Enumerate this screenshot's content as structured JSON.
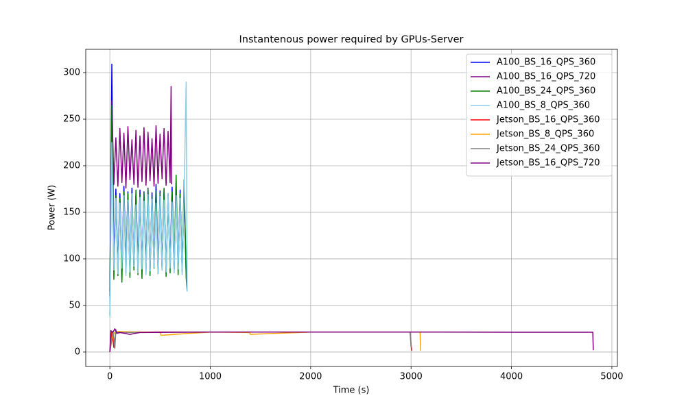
{
  "chart_data": {
    "type": "line",
    "title": "Instantenous power required by GPUs-Server",
    "xlabel": "Time (s)",
    "ylabel": "Power (W)",
    "xlim": [
      -240,
      5055
    ],
    "ylim": [
      -15.5,
      325
    ],
    "xticks": [
      0,
      1000,
      2000,
      3000,
      4000,
      5000
    ],
    "yticks": [
      0,
      50,
      100,
      150,
      200,
      250,
      300
    ],
    "grid": true,
    "legend": "upper right",
    "series": [
      {
        "name": "A100_BS_16_QPS_360",
        "color": "#0000ff",
        "x": [
          0,
          20,
          40,
          60,
          80,
          100,
          120,
          140,
          160,
          180,
          200,
          220,
          240,
          260,
          280,
          300,
          320,
          340,
          360,
          380,
          400,
          420,
          440,
          460,
          480,
          500,
          520,
          540,
          560,
          580,
          600,
          620,
          640,
          660,
          680,
          700,
          720,
          740,
          760,
          770
        ],
        "values": [
          65,
          309,
          95,
          175,
          90,
          170,
          88,
          178,
          92,
          172,
          86,
          176,
          90,
          170,
          95,
          174,
          88,
          172,
          92,
          176,
          87,
          171,
          94,
          180,
          89,
          173,
          91,
          175,
          86,
          170,
          93,
          177,
          88,
          172,
          90,
          174,
          87,
          171,
          85,
          70
        ]
      },
      {
        "name": "A100_BS_16_QPS_720",
        "color": "#800080",
        "x": [
          0,
          20,
          40,
          60,
          80,
          100,
          120,
          140,
          160,
          180,
          200,
          220,
          240,
          260,
          280,
          300,
          320,
          340,
          360,
          380,
          400,
          420,
          440,
          460,
          480,
          500,
          520,
          540,
          560,
          580,
          600,
          610,
          615
        ],
        "values": [
          60,
          270,
          180,
          230,
          178,
          240,
          182,
          235,
          176,
          242,
          185,
          228,
          180,
          238,
          177,
          232,
          183,
          241,
          179,
          236,
          184,
          229,
          178,
          243,
          181,
          234,
          186,
          240,
          179,
          237,
          182,
          285,
          180
        ]
      },
      {
        "name": "A100_BS_24_QPS_360",
        "color": "#008000",
        "x": [
          0,
          20,
          40,
          60,
          80,
          100,
          120,
          140,
          160,
          180,
          200,
          220,
          240,
          260,
          280,
          300,
          320,
          340,
          360,
          380,
          400,
          420,
          440,
          460,
          480,
          500,
          520,
          540,
          560,
          580,
          600,
          620,
          640,
          660,
          680,
          700,
          720,
          740,
          760,
          770
        ],
        "values": [
          40,
          265,
          78,
          168,
          82,
          165,
          75,
          172,
          85,
          170,
          80,
          166,
          88,
          174,
          83,
          169,
          79,
          171,
          86,
          175,
          82,
          167,
          90,
          173,
          84,
          170,
          88,
          176,
          81,
          168,
          85,
          172,
          89,
          190,
          83,
          170,
          86,
          185,
          80,
          65
        ]
      },
      {
        "name": "A100_BS_8_QPS_360",
        "color": "#87ceeb",
        "x": [
          0,
          20,
          40,
          60,
          80,
          100,
          120,
          140,
          160,
          180,
          200,
          220,
          240,
          260,
          280,
          300,
          320,
          340,
          360,
          380,
          400,
          420,
          440,
          460,
          480,
          500,
          520,
          540,
          560,
          580,
          600,
          620,
          640,
          660,
          680,
          700,
          720,
          740,
          760,
          770
        ],
        "values": [
          38,
          225,
          88,
          165,
          84,
          160,
          90,
          168,
          82,
          163,
          86,
          170,
          92,
          158,
          85,
          166,
          89,
          162,
          83,
          169,
          87,
          164,
          91,
          160,
          84,
          167,
          88,
          163,
          86,
          170,
          90,
          161,
          85,
          168,
          89,
          165,
          83,
          170,
          290,
          65
        ]
      },
      {
        "name": "Jetson_BS_16_QPS_360",
        "color": "#ff0000",
        "x": [
          0,
          20,
          40,
          60,
          100,
          500,
          1000,
          1500,
          2000,
          2500,
          2990,
          3005,
          3010
        ],
        "values": [
          0,
          22,
          5,
          22,
          21,
          21.5,
          21.5,
          21.5,
          21.5,
          21.5,
          21.5,
          2,
          2
        ]
      },
      {
        "name": "Jetson_BS_8_QPS_360",
        "color": "#ffa500",
        "x": [
          0,
          20,
          40,
          60,
          500,
          510,
          1000,
          1390,
          1400,
          2000,
          2700,
          3000,
          3090,
          3095,
          3100
        ],
        "values": [
          0,
          13,
          20,
          22,
          21,
          18,
          21.5,
          21,
          19,
          21.5,
          21.5,
          21.5,
          21.5,
          2,
          2
        ]
      },
      {
        "name": "Jetson_BS_24_QPS_360",
        "color": "#808080",
        "x": [
          0,
          30,
          50,
          60,
          70,
          100,
          1000,
          2000,
          2990,
          3000
        ],
        "values": [
          0,
          22,
          4,
          24,
          21,
          21,
          21.5,
          21.5,
          21.5,
          5
        ]
      },
      {
        "name": "Jetson_BS_16_QPS_720",
        "color": "#800080",
        "x": [
          0,
          10,
          30,
          50,
          70,
          100,
          200,
          300,
          1000,
          2000,
          3000,
          4000,
          4810,
          4815
        ],
        "values": [
          0,
          23,
          21,
          25,
          20,
          21,
          19,
          21,
          21.5,
          21.5,
          21.5,
          21.3,
          21.3,
          2
        ]
      }
    ]
  }
}
